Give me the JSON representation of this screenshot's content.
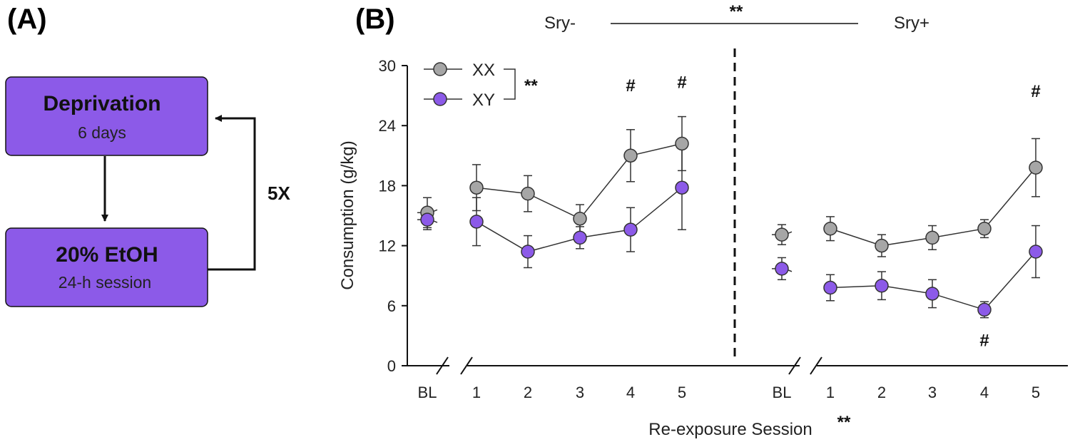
{
  "panel_a": {
    "label": "(A)",
    "box1": {
      "title": "Deprivation",
      "subtitle": "6 days"
    },
    "box2": {
      "title": "20% EtOH",
      "subtitle": "24-h session"
    },
    "loop_label": "5X",
    "box_color": "#8c5ae8"
  },
  "panel_b": {
    "label": "(B)",
    "group_left": "Sry-",
    "group_right": "Sry+",
    "group_sig": "**",
    "legend_sig": "**",
    "x_sig": "**"
  },
  "chart_data": {
    "type": "line",
    "title": "",
    "ylabel": "Consumption (g/kg)",
    "xlabel": "Re-exposure Session",
    "ylim": [
      0,
      30
    ],
    "yticks": [
      "0",
      "6",
      "12",
      "18",
      "24",
      "30"
    ],
    "panels": [
      {
        "group": "Sry-",
        "categories": [
          "BL",
          "1",
          "2",
          "3",
          "4",
          "5"
        ],
        "series": [
          {
            "name": "XX",
            "color": "#a6a6a6",
            "values": [
              15.3,
              17.8,
              17.2,
              14.7,
              21.0,
              22.2
            ],
            "errors": [
              1.5,
              2.3,
              1.8,
              1.4,
              2.6,
              2.7
            ]
          },
          {
            "name": "XY",
            "color": "#8c5ae8",
            "values": [
              14.6,
              14.4,
              11.4,
              12.8,
              13.6,
              17.8
            ],
            "errors": [
              1.0,
              2.4,
              1.6,
              1.1,
              2.2,
              4.2
            ]
          }
        ],
        "annotations": [
          {
            "category": "4",
            "text": "#",
            "position": "above"
          },
          {
            "category": "5",
            "text": "#",
            "position": "above"
          }
        ]
      },
      {
        "group": "Sry+",
        "categories": [
          "BL",
          "1",
          "2",
          "3",
          "4",
          "5"
        ],
        "series": [
          {
            "name": "XX",
            "color": "#a6a6a6",
            "values": [
              13.1,
              13.7,
              12.0,
              12.8,
              13.7,
              19.8
            ],
            "errors": [
              1.0,
              1.2,
              1.1,
              1.2,
              0.9,
              2.9
            ]
          },
          {
            "name": "XY",
            "color": "#8c5ae8",
            "values": [
              9.7,
              7.8,
              8.0,
              7.2,
              5.6,
              11.4
            ],
            "errors": [
              1.1,
              1.3,
              1.4,
              1.4,
              0.8,
              2.6
            ]
          }
        ],
        "annotations": [
          {
            "category": "5",
            "text": "#",
            "position": "above"
          },
          {
            "category": "4",
            "text": "#",
            "position": "below"
          }
        ]
      }
    ]
  }
}
